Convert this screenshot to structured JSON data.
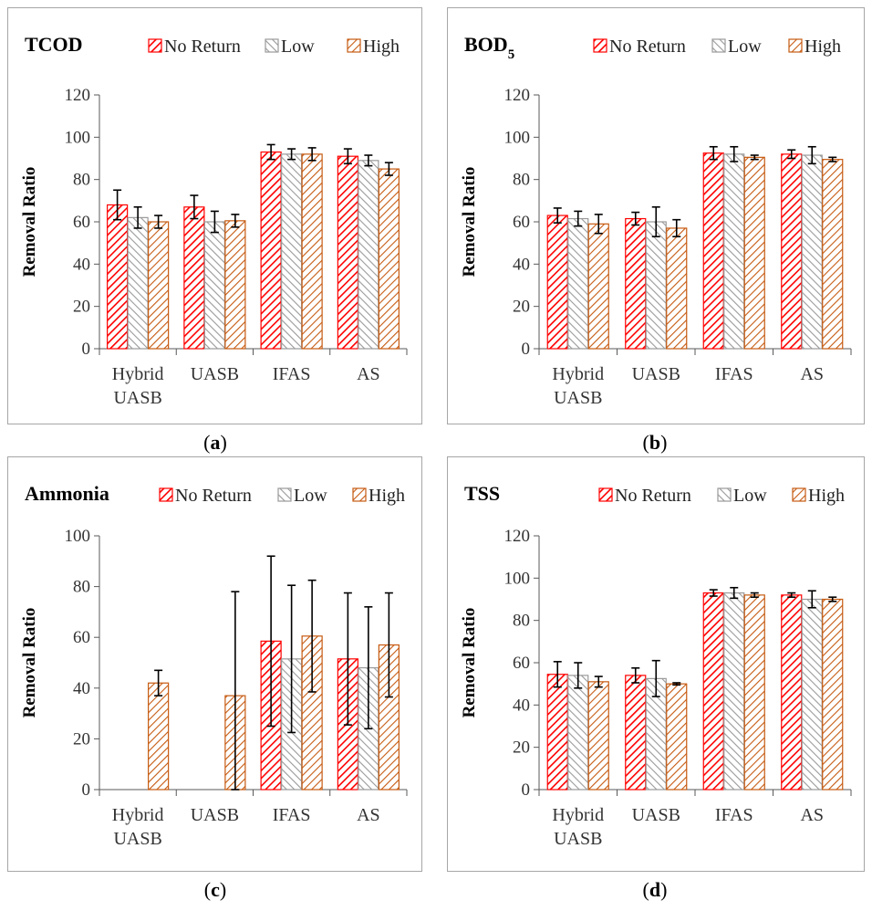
{
  "series_names": [
    "No Return",
    "Low",
    "High"
  ],
  "series_colors": {
    "No Return": "#ff0000",
    "Low": "#9a9a9a",
    "High": "#c65a11"
  },
  "captions": [
    "a",
    "b",
    "c",
    "d"
  ],
  "chart_data": [
    {
      "type": "bar",
      "title": "TCOD",
      "ylabel": "Removal Ratio",
      "ylim": [
        0,
        120
      ],
      "yticks": [
        0,
        20,
        40,
        60,
        80,
        100,
        120
      ],
      "categories": [
        [
          "Hybrid",
          "UASB"
        ],
        [
          "UASB"
        ],
        [
          "IFAS"
        ],
        [
          "AS"
        ]
      ],
      "series": [
        {
          "name": "No Return",
          "values": [
            68,
            67,
            93,
            91
          ],
          "errors": [
            7,
            5.5,
            3.5,
            3.5
          ]
        },
        {
          "name": "Low",
          "values": [
            62,
            60,
            92,
            89
          ],
          "errors": [
            5,
            5,
            2.5,
            2.5
          ]
        },
        {
          "name": "High",
          "values": [
            60,
            60.5,
            92,
            85
          ],
          "errors": [
            3,
            3,
            3,
            3
          ]
        }
      ]
    },
    {
      "type": "bar",
      "title": "BOD5",
      "title_main": "BOD",
      "title_sub": "5",
      "ylabel": "Removal Ratio",
      "ylim": [
        0,
        120
      ],
      "yticks": [
        0,
        20,
        40,
        60,
        80,
        100,
        120
      ],
      "categories": [
        [
          "Hybrid",
          "UASB"
        ],
        [
          "UASB"
        ],
        [
          "IFAS"
        ],
        [
          "AS"
        ]
      ],
      "series": [
        {
          "name": "No Return",
          "values": [
            63,
            61.5,
            92.5,
            92
          ],
          "errors": [
            3.5,
            3,
            3,
            2
          ]
        },
        {
          "name": "Low",
          "values": [
            61.5,
            60,
            92,
            91.5
          ],
          "errors": [
            3.5,
            7,
            3.5,
            4
          ]
        },
        {
          "name": "High",
          "values": [
            59,
            57,
            90.5,
            89.5
          ],
          "errors": [
            4.5,
            4,
            1,
            1
          ]
        }
      ]
    },
    {
      "type": "bar",
      "title": "Ammonia",
      "ylabel": "Removal Ratio",
      "ylim": [
        0,
        100
      ],
      "yticks": [
        0,
        20,
        40,
        60,
        80,
        100
      ],
      "categories": [
        [
          "Hybrid",
          "UASB"
        ],
        [
          "UASB"
        ],
        [
          "IFAS"
        ],
        [
          "AS"
        ]
      ],
      "series": [
        {
          "name": "No Return",
          "values": [
            0,
            0,
            58.5,
            51.5
          ],
          "errors": [
            0,
            0,
            33.5,
            26
          ]
        },
        {
          "name": "Low",
          "values": [
            0,
            0,
            51.5,
            48
          ],
          "errors": [
            0,
            0,
            29,
            24
          ]
        },
        {
          "name": "High",
          "values": [
            42,
            37,
            60.5,
            57
          ],
          "errors": [
            5,
            41,
            22,
            20.5
          ]
        }
      ]
    },
    {
      "type": "bar",
      "title": "TSS",
      "ylabel": "Removal Ratio",
      "ylim": [
        0,
        120
      ],
      "yticks": [
        0,
        20,
        40,
        60,
        80,
        100,
        120
      ],
      "categories": [
        [
          "Hybrid",
          "UASB"
        ],
        [
          "UASB"
        ],
        [
          "IFAS"
        ],
        [
          "AS"
        ]
      ],
      "series": [
        {
          "name": "No Return",
          "values": [
            54.5,
            54,
            93,
            92
          ],
          "errors": [
            6,
            3.5,
            1.5,
            1
          ]
        },
        {
          "name": "Low",
          "values": [
            54,
            52.5,
            93,
            90
          ],
          "errors": [
            6,
            8.5,
            2.5,
            4
          ]
        },
        {
          "name": "High",
          "values": [
            51,
            50,
            92,
            90
          ],
          "errors": [
            2.5,
            0.5,
            1,
            1
          ]
        }
      ]
    }
  ]
}
